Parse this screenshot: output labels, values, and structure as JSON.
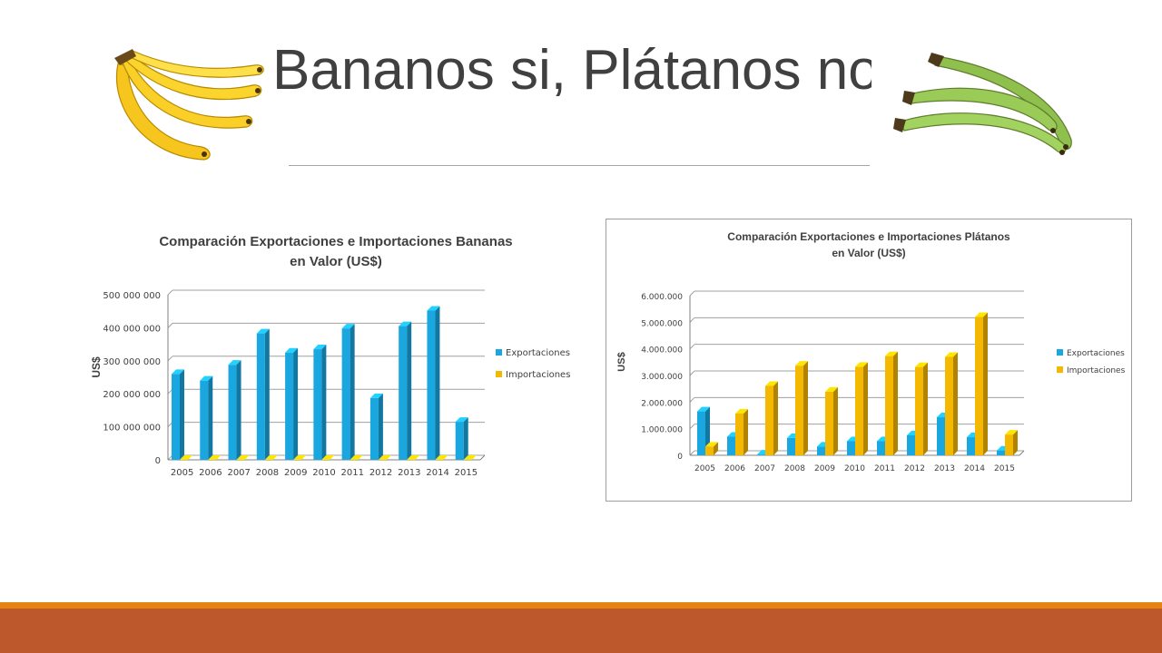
{
  "slide": {
    "title": "Bananos si, Plátanos no",
    "left_image": "yellow-banana-bunch",
    "right_image": "green-plantain-bunch",
    "colors": {
      "title": "#404040",
      "exportaciones": "#1aa7df",
      "importaciones": "#f5b800",
      "footer_orange": "#e48312",
      "footer_rust": "#bd582c"
    }
  },
  "chart_data": [
    {
      "type": "bar",
      "title": "Comparación Exportaciones e Importaciones Bananas en Valor (US$)",
      "title_lines": [
        "Comparación Exportaciones e Importaciones Bananas",
        "en Valor (US$)"
      ],
      "xlabel": "",
      "ylabel": "US$",
      "categories": [
        "2005",
        "2006",
        "2007",
        "2008",
        "2009",
        "2010",
        "2011",
        "2012",
        "2013",
        "2014",
        "2015"
      ],
      "series": [
        {
          "name": "Exportaciones",
          "values": [
            260000000,
            240000000,
            288000000,
            383000000,
            325000000,
            335000000,
            398000000,
            187000000,
            405000000,
            452000000,
            115000000
          ]
        },
        {
          "name": "Importaciones",
          "values": [
            0,
            0,
            0,
            0,
            0,
            0,
            0,
            0,
            0,
            0,
            0
          ]
        }
      ],
      "ylim": [
        0,
        500000000
      ],
      "yticks": [
        0,
        100000000,
        200000000,
        300000000,
        400000000,
        500000000
      ],
      "ytick_labels": [
        "0",
        "100 000 000",
        "200 000 000",
        "300 000 000",
        "400 000 000",
        "500 000 000"
      ],
      "grid": true,
      "legend": "right"
    },
    {
      "type": "bar",
      "title": "Comparación Exportaciones e Importaciones Plátanos en Valor (US$)",
      "title_lines": [
        "Comparación Exportaciones e Importaciones Plátanos",
        "en Valor (US$)"
      ],
      "xlabel": "",
      "ylabel": "US$",
      "categories": [
        "2005",
        "2006",
        "2007",
        "2008",
        "2009",
        "2010",
        "2011",
        "2012",
        "2013",
        "2014",
        "2015"
      ],
      "series": [
        {
          "name": "Exportaciones",
          "values": [
            1650000,
            700000,
            30000,
            650000,
            330000,
            530000,
            530000,
            750000,
            1430000,
            680000,
            180000
          ]
        },
        {
          "name": "Importaciones",
          "values": [
            330000,
            1570000,
            2610000,
            3370000,
            2390000,
            3330000,
            3730000,
            3320000,
            3700000,
            5200000,
            780000
          ]
        }
      ],
      "ylim": [
        0,
        6000000
      ],
      "yticks": [
        0,
        1000000,
        2000000,
        3000000,
        4000000,
        5000000,
        6000000
      ],
      "ytick_labels": [
        "0",
        "1.000.000",
        "2.000.000",
        "3.000.000",
        "4.000.000",
        "5.000.000",
        "6.000.000"
      ],
      "grid": true,
      "legend": "right"
    }
  ]
}
